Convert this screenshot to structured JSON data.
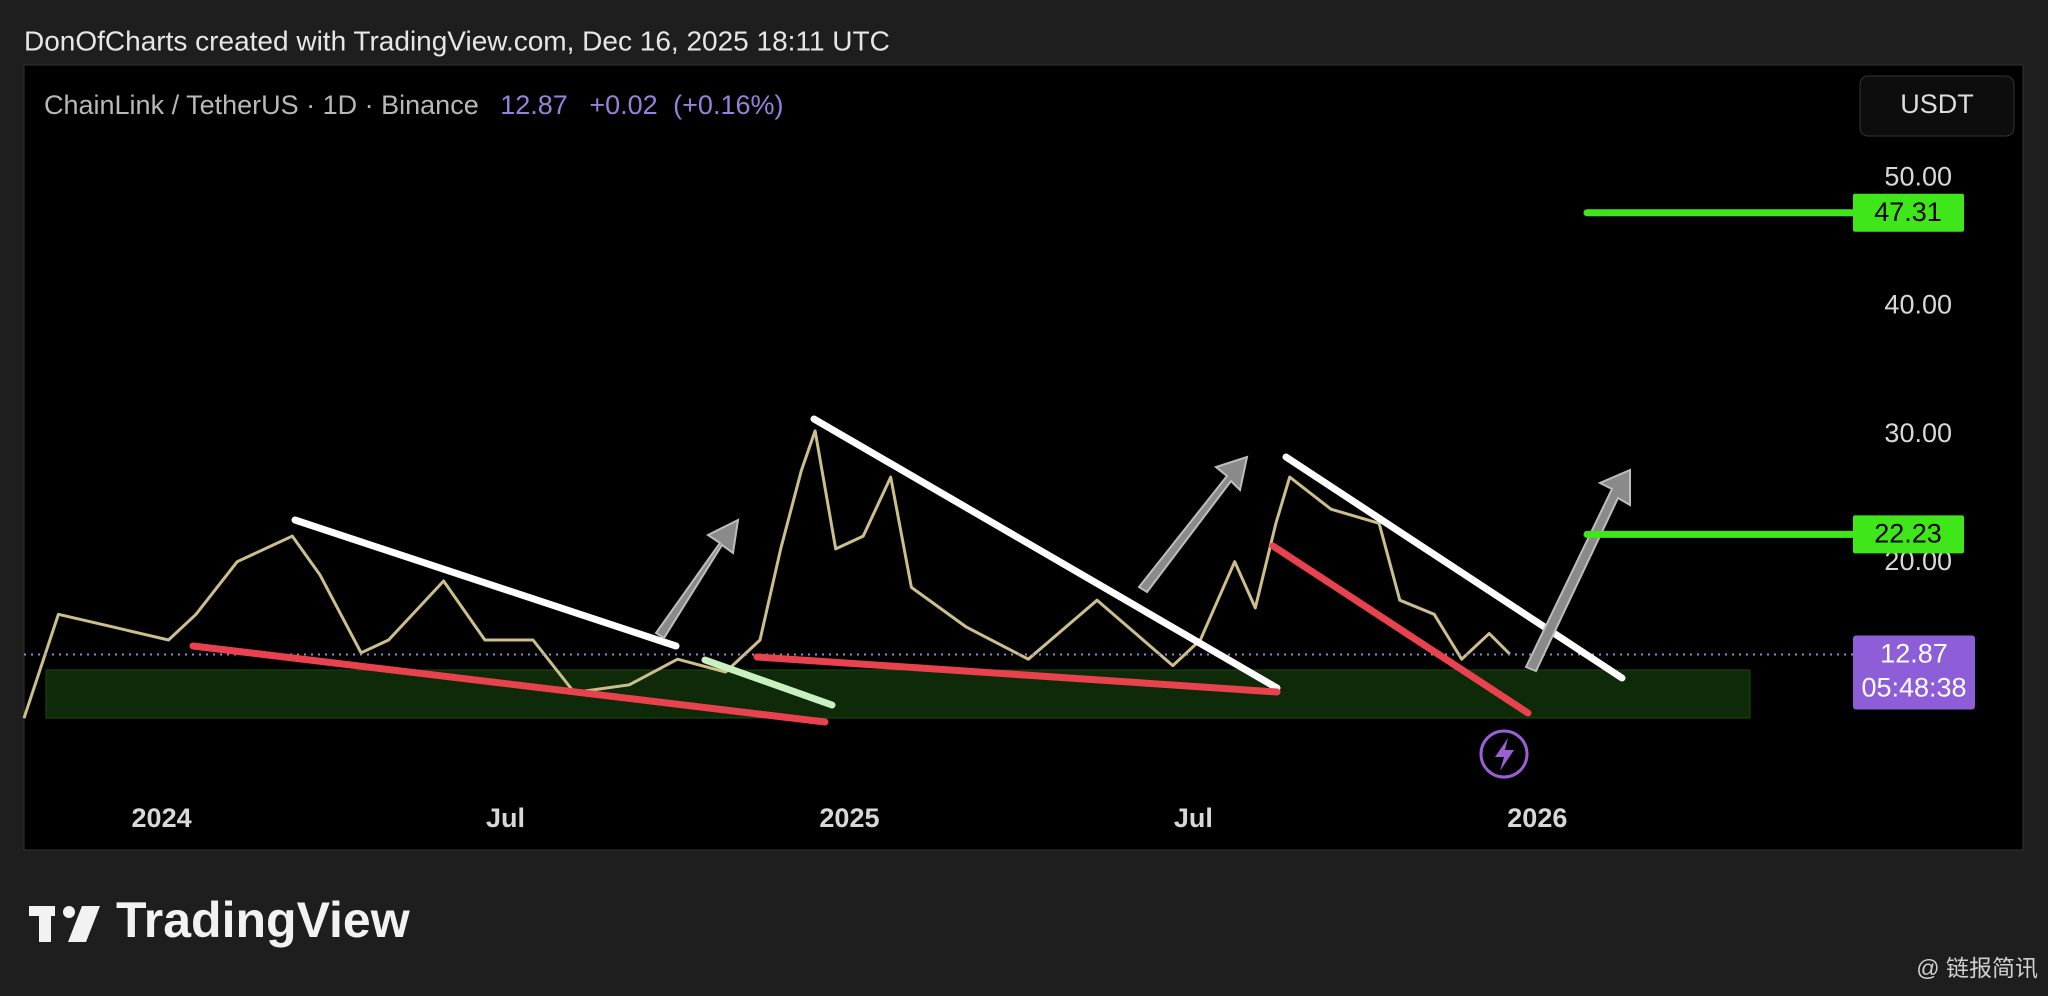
{
  "header": "DonOfCharts created with TradingView.com, Dec 16, 2025 18:11 UTC",
  "chart_data": {
    "type": "line",
    "symbol": "ChainLink / TetherUS · 1D · Binance",
    "last_price": 12.87,
    "change": {
      "value": 0.02,
      "label": "+0.02"
    },
    "change_percent": {
      "value": 0.16,
      "label": "(+0.16%)"
    },
    "currency": "USDT",
    "countdown": "05:48:38",
    "color": "#cdbf8c",
    "x": [
      2023.8,
      2023.85,
      2023.93,
      2024.01,
      2024.05,
      2024.11,
      2024.19,
      2024.23,
      2024.29,
      2024.33,
      2024.41,
      2024.47,
      2024.54,
      2024.6,
      2024.68,
      2024.75,
      2024.82,
      2024.87,
      2024.9,
      2024.93,
      2024.95,
      2024.98,
      2025.02,
      2025.06,
      2025.09,
      2025.17,
      2025.26,
      2025.36,
      2025.47,
      2025.51,
      2025.56,
      2025.59,
      2025.62,
      2025.64,
      2025.7,
      2025.77,
      2025.8,
      2025.85,
      2025.89,
      2025.93,
      2025.96
    ],
    "values": [
      7.9,
      16.0,
      15.0,
      14.0,
      16.0,
      20.1,
      22.1,
      19.1,
      13.0,
      14.0,
      18.6,
      14.0,
      14.0,
      9.9,
      10.5,
      12.5,
      11.5,
      14.0,
      21.1,
      27.2,
      30.3,
      21.1,
      22.1,
      26.7,
      18.1,
      15.0,
      12.5,
      17.1,
      12.0,
      14.0,
      20.1,
      16.5,
      23.1,
      26.7,
      24.2,
      23.1,
      17.1,
      16.0,
      12.5,
      14.5,
      12.9
    ],
    "levels": [
      {
        "value": 47.31,
        "color": "#3ee61a"
      },
      {
        "value": 22.23,
        "color": "#3ee61a"
      }
    ],
    "xlim": [
      2023.8,
      2026.44
    ],
    "ylim": [
      2.3,
      58.6
    ],
    "xticks": [
      {
        "value": 2024,
        "label": "2024"
      },
      {
        "value": 2024.5,
        "label": "Jul"
      },
      {
        "value": 2025,
        "label": "2025"
      },
      {
        "value": 2025.5,
        "label": "Jul"
      },
      {
        "value": 2026,
        "label": "2026"
      }
    ],
    "yticks": [
      {
        "value": 20,
        "label": "20.00"
      },
      {
        "value": 30,
        "label": "30.00"
      },
      {
        "value": 40,
        "label": "40.00"
      },
      {
        "value": 50,
        "label": "50.00"
      }
    ]
  },
  "footer": {
    "logo": "TradingView",
    "watermark": "@ 链报简讯"
  }
}
